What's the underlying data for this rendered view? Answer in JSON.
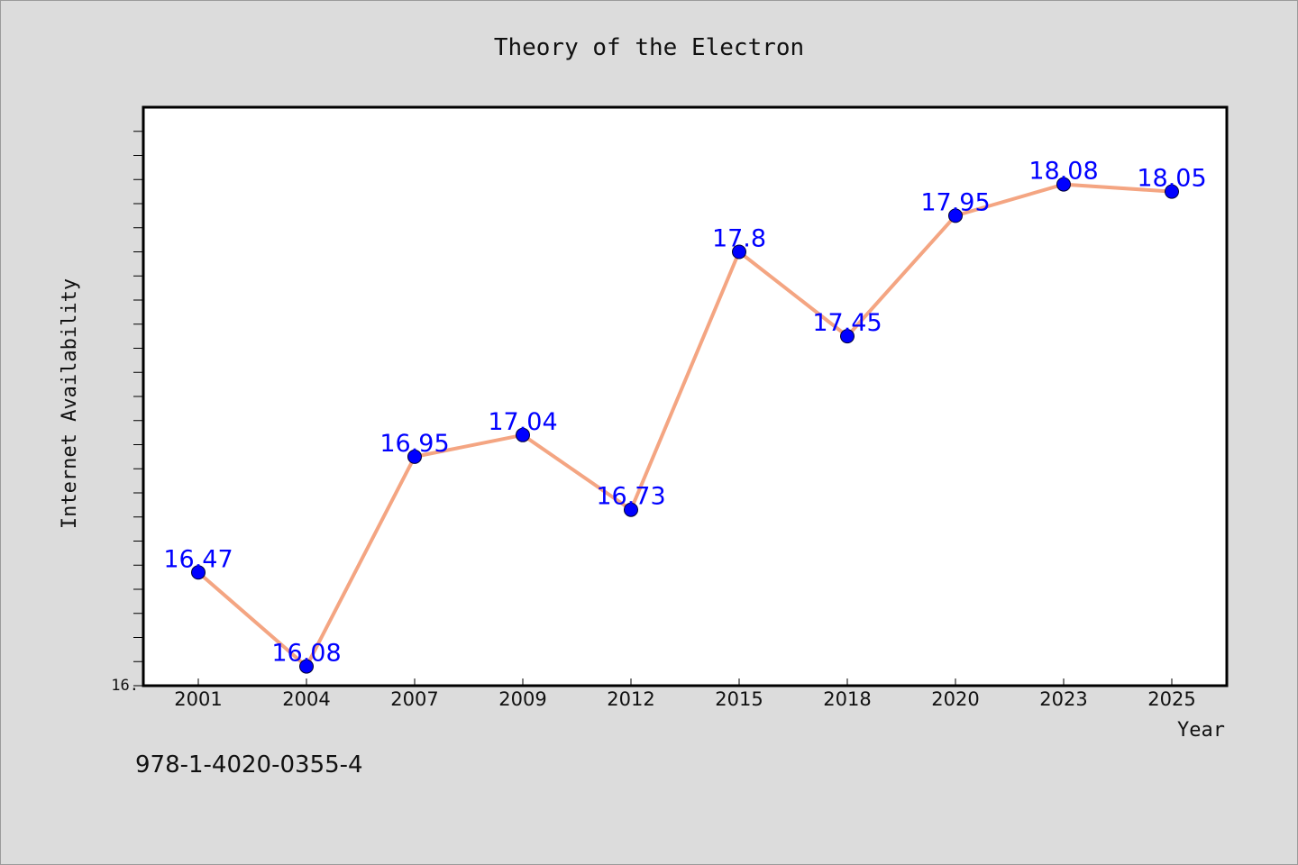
{
  "chart_data": {
    "type": "line",
    "title": "Theory of the Electron",
    "xlabel": "Year",
    "ylabel": "Internet Availability",
    "categories": [
      "2001",
      "2004",
      "2007",
      "2009",
      "2012",
      "2015",
      "2018",
      "2020",
      "2023",
      "2025"
    ],
    "series": [
      {
        "values": [
          16.47,
          16.08,
          16.95,
          17.04,
          16.73,
          17.8,
          17.45,
          17.95,
          18.08,
          18.05
        ],
        "line_color": "#f4a582",
        "marker_color": "#0000ff"
      }
    ],
    "data_labels": [
      "16.47",
      "16.08",
      "16.95",
      "17.04",
      "16.73",
      "17.8",
      "17.45",
      "17.95",
      "18.08",
      "18.05"
    ],
    "y_tick_label": "16.",
    "ylim": [
      16.0,
      18.4
    ],
    "grid": false,
    "legend": "none"
  },
  "footer": {
    "isbn": "978-1-4020-0355-4"
  }
}
